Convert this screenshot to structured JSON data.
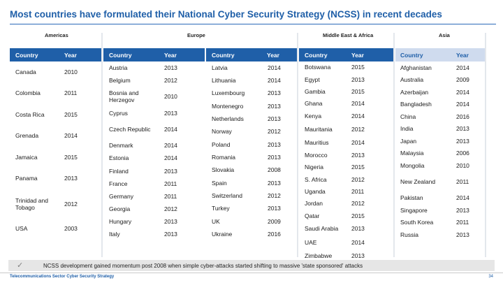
{
  "title": "Most countries have formulated their National Cyber Security Strategy (NCSS) in recent decades",
  "headers": {
    "country": "Country",
    "year": "Year"
  },
  "regions": {
    "americas": "Americas",
    "europe": "Europe",
    "mea": "Middle East & Africa",
    "asia": "Asia"
  },
  "americas": [
    {
      "country": "Canada",
      "year": "2010"
    },
    {
      "country": "Colombia",
      "year": "2011"
    },
    {
      "country": "Costa Rica",
      "year": "2015"
    },
    {
      "country": "Grenada",
      "year": "2014"
    },
    {
      "country": "Jamaica",
      "year": "2015"
    },
    {
      "country": "Panama",
      "year": "2013"
    },
    {
      "country": "Trinidad and Tobago",
      "year": "2012"
    },
    {
      "country": "USA",
      "year": "2003"
    }
  ],
  "europe1": [
    {
      "country": "Austria",
      "year": "2013"
    },
    {
      "country": "Belgium",
      "year": "2012"
    },
    {
      "country": "Bosnia and Herzegov",
      "year": "2010"
    },
    {
      "country": "Cyprus",
      "year": "2013"
    },
    {
      "country": "Czech Republic",
      "year": "2014"
    },
    {
      "country": "Denmark",
      "year": "2014"
    },
    {
      "country": "Estonia",
      "year": "2014"
    },
    {
      "country": "Finland",
      "year": "2013"
    },
    {
      "country": "France",
      "year": "2011"
    },
    {
      "country": "Germany",
      "year": "2011"
    },
    {
      "country": "Georgia",
      "year": "2012"
    },
    {
      "country": "Hungary",
      "year": "2013"
    },
    {
      "country": "Italy",
      "year": "2013"
    }
  ],
  "europe2": [
    {
      "country": "Latvia",
      "year": "2014"
    },
    {
      "country": "Lithuania",
      "year": "2014"
    },
    {
      "country": "Luxembourg",
      "year": "2013"
    },
    {
      "country": "Montenegro",
      "year": "2013"
    },
    {
      "country": "Netherlands",
      "year": "2013"
    },
    {
      "country": "Norway",
      "year": "2012"
    },
    {
      "country": "Poland",
      "year": "2013"
    },
    {
      "country": "Romania",
      "year": "2013"
    },
    {
      "country": "Slovakia",
      "year": "2008"
    },
    {
      "country": "Spain",
      "year": "2013"
    },
    {
      "country": "Switzerland",
      "year": "2012"
    },
    {
      "country": "Turkey",
      "year": "2013"
    },
    {
      "country": "UK",
      "year": "2009"
    },
    {
      "country": "Ukraine",
      "year": "2016"
    }
  ],
  "mea": [
    {
      "country": "Botswana",
      "year": "2015"
    },
    {
      "country": "Egypt",
      "year": "2013"
    },
    {
      "country": "Gambia",
      "year": "2015"
    },
    {
      "country": "Ghana",
      "year": "2014"
    },
    {
      "country": "Kenya",
      "year": "2014"
    },
    {
      "country": "Mauritania",
      "year": "2012"
    },
    {
      "country": "Mauritius",
      "year": "2014"
    },
    {
      "country": "Morocco",
      "year": "2013"
    },
    {
      "country": "Nigeria",
      "year": "2015"
    },
    {
      "country": "S. Africa",
      "year": "2012"
    },
    {
      "country": "Uganda",
      "year": "2011"
    },
    {
      "country": "Jordan",
      "year": "2012"
    },
    {
      "country": "Qatar",
      "year": "2015"
    },
    {
      "country": "Saudi Arabia",
      "year": "2013"
    },
    {
      "country": "UAE",
      "year": "2014"
    },
    {
      "country": "Zimbabwe",
      "year": "2013"
    }
  ],
  "asia": [
    {
      "country": "Afghanistan",
      "year": "2014"
    },
    {
      "country": "Australia",
      "year": "2009"
    },
    {
      "country": "Azerbaijan",
      "year": "2014"
    },
    {
      "country": "Bangladesh",
      "year": "2014"
    },
    {
      "country": "China",
      "year": "2016"
    },
    {
      "country": "India",
      "year": "2013"
    },
    {
      "country": "Japan",
      "year": "2013"
    },
    {
      "country": "Malaysia",
      "year": "2006"
    },
    {
      "country": "Mongolia",
      "year": "2010"
    },
    {
      "country": "New Zealand",
      "year": "2011"
    },
    {
      "country": "Pakistan",
      "year": "2014"
    },
    {
      "country": "Singapore",
      "year": "2013"
    },
    {
      "country": "South Korea",
      "year": "2011"
    },
    {
      "country": "Russia",
      "year": "2013"
    }
  ],
  "footnote": {
    "before": "NCSS development gained momentum post 2008 when simple ",
    "highlight": "cyber-attacks",
    "after": " started shifting to massive 'state sponsored' attacks"
  },
  "footer": {
    "text": "Telecommunications Sector Cyber Security Strategy",
    "page": "34"
  }
}
